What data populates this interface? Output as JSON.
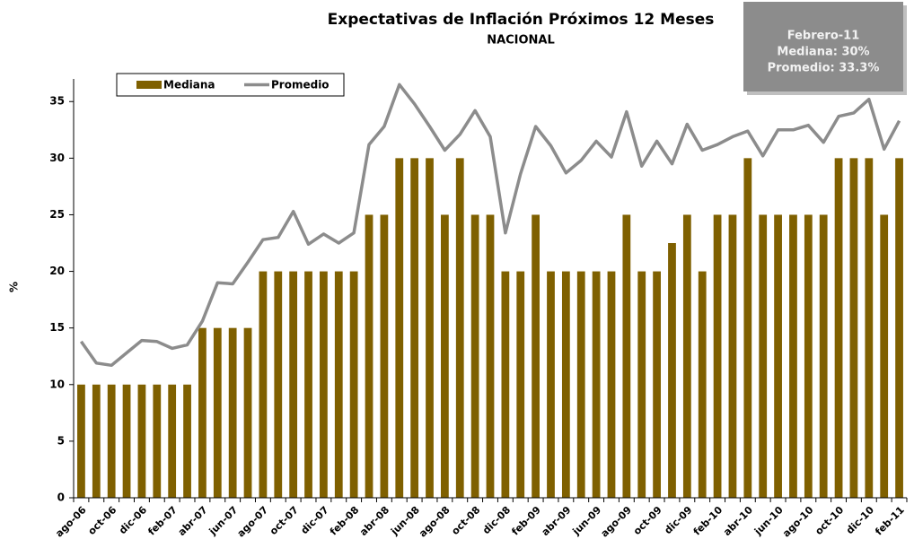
{
  "chart_data": {
    "type": "bar",
    "title": "Expectativas de Inflación Próximos 12 Meses",
    "subtitle": "NACIONAL",
    "y_label": "%",
    "categories": [
      "ago-06",
      null,
      "oct-06",
      null,
      "dic-06",
      null,
      "feb-07",
      null,
      "abr-07",
      null,
      "jun-07",
      null,
      "ago-07",
      null,
      "oct-07",
      null,
      "dic-07",
      null,
      "feb-08",
      null,
      "abr-08",
      null,
      "jun-08",
      null,
      "ago-08",
      null,
      "oct-08",
      null,
      "dic-08",
      null,
      "feb-09",
      null,
      "abr-09",
      null,
      "jun-09",
      null,
      "ago-09",
      null,
      "oct-09",
      null,
      "dic-09",
      null,
      "feb-10",
      null,
      "abr-10",
      null,
      "jun-10",
      null,
      "ago-10",
      null,
      "oct-10",
      null,
      "dic-10",
      null,
      "feb-11"
    ],
    "series": [
      {
        "name": "Mediana",
        "type": "bar",
        "color": "#7f6000",
        "values": [
          10,
          10,
          10,
          10,
          10,
          10,
          10,
          10,
          15,
          15,
          15,
          15,
          20,
          20,
          20,
          20,
          20,
          20,
          20,
          25,
          25,
          30,
          30,
          30,
          25,
          30,
          25,
          25,
          20,
          20,
          25,
          20,
          20,
          20,
          20,
          20,
          25,
          20,
          20,
          22.5,
          25,
          20,
          25,
          25,
          30,
          25,
          25,
          25,
          25,
          25,
          30,
          30,
          30,
          25,
          30
        ]
      },
      {
        "name": "Promedio",
        "type": "line",
        "color": "#8c8c8c",
        "values": [
          13.8,
          11.9,
          11.7,
          12.8,
          13.9,
          13.8,
          13.2,
          13.5,
          15.6,
          19.0,
          18.9,
          20.8,
          22.8,
          23.0,
          25.3,
          22.4,
          23.3,
          22.5,
          23.4,
          31.2,
          32.8,
          36.5,
          34.8,
          32.8,
          30.7,
          32.1,
          34.2,
          31.9,
          23.4,
          28.6,
          32.8,
          31.1,
          28.7,
          29.8,
          31.5,
          30.1,
          34.1,
          29.3,
          31.5,
          29.5,
          33.0,
          30.7,
          31.2,
          31.9,
          32.4,
          30.2,
          32.5,
          32.5,
          32.9,
          31.4,
          33.7,
          34.0,
          35.2,
          30.8,
          33.3
        ]
      }
    ],
    "ylim": [
      0,
      37
    ],
    "yticks": [
      0,
      5,
      10,
      15,
      20,
      25,
      30,
      35
    ],
    "legend": "top-left",
    "annotation": [
      "Febrero-11",
      "Mediana: 30%",
      "Promedio: 33.3%"
    ]
  }
}
